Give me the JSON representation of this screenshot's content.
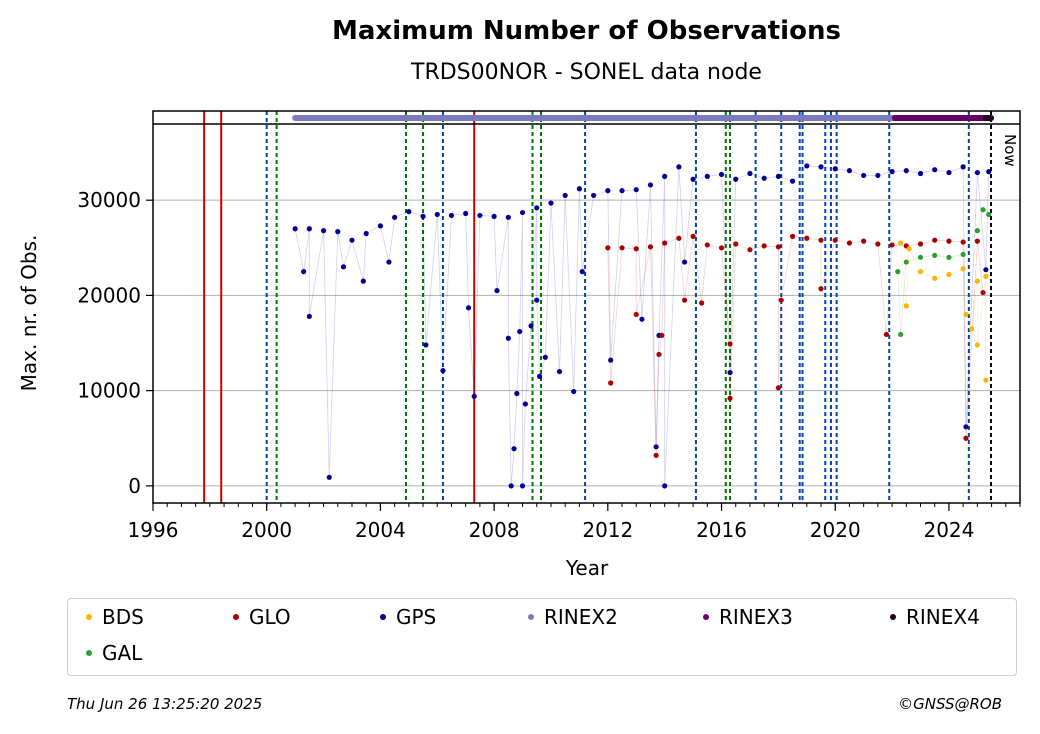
{
  "chart_data": {
    "type": "scatter",
    "title": "Maximum Number of Observations",
    "subtitle": "TRDS00NOR - SONEL data node",
    "xlabel": "Year",
    "ylabel": "Max. nr. of Obs.",
    "xlim": [
      1996,
      2026.5
    ],
    "ylim": [
      -1800,
      38000
    ],
    "xticks": [
      1996,
      2000,
      2004,
      2008,
      2012,
      2016,
      2020,
      2024
    ],
    "yticks": [
      0,
      10000,
      20000,
      30000
    ],
    "grid": "y",
    "now_label": "Now",
    "now_year": 2025.48,
    "series": [
      {
        "name": "GPS",
        "color": "#000099",
        "points": [
          [
            2001.0,
            27000
          ],
          [
            2001.5,
            27000
          ],
          [
            2002.0,
            26800
          ],
          [
            2002.5,
            26700
          ],
          [
            2003.0,
            25800
          ],
          [
            2003.5,
            26500
          ],
          [
            2004.0,
            27300
          ],
          [
            2004.5,
            28200
          ],
          [
            2005.0,
            28800
          ],
          [
            2005.5,
            28300
          ],
          [
            2006.0,
            28500
          ],
          [
            2006.5,
            28400
          ],
          [
            2007.0,
            28600
          ],
          [
            2007.5,
            28400
          ],
          [
            2008.0,
            28300
          ],
          [
            2008.5,
            28200
          ],
          [
            2009.0,
            28700
          ],
          [
            2009.5,
            29200
          ],
          [
            2010.0,
            29700
          ],
          [
            2010.5,
            30500
          ],
          [
            2011.0,
            31200
          ],
          [
            2011.5,
            30500
          ],
          [
            2012.0,
            31000
          ],
          [
            2012.5,
            31000
          ],
          [
            2013.0,
            31100
          ],
          [
            2013.5,
            31600
          ],
          [
            2014.0,
            32500
          ],
          [
            2014.5,
            33500
          ],
          [
            2015.0,
            32200
          ],
          [
            2015.5,
            32500
          ],
          [
            2016.0,
            32700
          ],
          [
            2016.5,
            32200
          ],
          [
            2017.0,
            32800
          ],
          [
            2017.5,
            32300
          ],
          [
            2018.0,
            32500
          ],
          [
            2018.5,
            32000
          ],
          [
            2019.0,
            33600
          ],
          [
            2019.5,
            33500
          ],
          [
            2020.0,
            33300
          ],
          [
            2020.5,
            33100
          ],
          [
            2021.0,
            32600
          ],
          [
            2021.5,
            32600
          ],
          [
            2022.0,
            33000
          ],
          [
            2022.5,
            33100
          ],
          [
            2023.0,
            32800
          ],
          [
            2023.5,
            33200
          ],
          [
            2024.0,
            32900
          ],
          [
            2024.5,
            33500
          ],
          [
            2025.0,
            32900
          ],
          [
            2025.4,
            33000
          ],
          [
            2001.3,
            22500
          ],
          [
            2001.5,
            17800
          ],
          [
            2002.2,
            900
          ],
          [
            2002.7,
            23000
          ],
          [
            2003.4,
            21500
          ],
          [
            2004.3,
            23500
          ],
          [
            2005.6,
            14800
          ],
          [
            2006.2,
            12100
          ],
          [
            2007.1,
            18700
          ],
          [
            2007.3,
            9400
          ],
          [
            2008.1,
            20500
          ],
          [
            2008.5,
            15500
          ],
          [
            2008.6,
            0
          ],
          [
            2008.7,
            3900
          ],
          [
            2008.8,
            9700
          ],
          [
            2008.9,
            16200
          ],
          [
            2009.0,
            0
          ],
          [
            2009.1,
            8600
          ],
          [
            2009.3,
            16800
          ],
          [
            2009.5,
            19500
          ],
          [
            2009.6,
            11500
          ],
          [
            2009.8,
            13500
          ],
          [
            2010.3,
            12000
          ],
          [
            2010.8,
            9900
          ],
          [
            2011.1,
            22500
          ],
          [
            2012.1,
            13200
          ],
          [
            2013.2,
            17500
          ],
          [
            2013.7,
            4100
          ],
          [
            2013.8,
            15800
          ],
          [
            2014.0,
            0
          ],
          [
            2014.7,
            23500
          ],
          [
            2016.3,
            11900
          ],
          [
            2024.6,
            6200
          ],
          [
            2025.3,
            22700
          ]
        ]
      },
      {
        "name": "GLO",
        "color": "#aa0000",
        "points": [
          [
            2012.0,
            25000
          ],
          [
            2012.5,
            25000
          ],
          [
            2013.0,
            24900
          ],
          [
            2013.5,
            25100
          ],
          [
            2014.0,
            25500
          ],
          [
            2014.5,
            26000
          ],
          [
            2015.0,
            26200
          ],
          [
            2015.5,
            25300
          ],
          [
            2016.0,
            25000
          ],
          [
            2016.5,
            25400
          ],
          [
            2017.0,
            24800
          ],
          [
            2017.5,
            25200
          ],
          [
            2018.0,
            25100
          ],
          [
            2018.5,
            26200
          ],
          [
            2019.0,
            26000
          ],
          [
            2019.5,
            25800
          ],
          [
            2020.0,
            25800
          ],
          [
            2020.5,
            25500
          ],
          [
            2021.0,
            25700
          ],
          [
            2021.5,
            25400
          ],
          [
            2022.0,
            25300
          ],
          [
            2022.5,
            25200
          ],
          [
            2023.0,
            25400
          ],
          [
            2023.5,
            25800
          ],
          [
            2024.0,
            25700
          ],
          [
            2024.5,
            25600
          ],
          [
            2025.0,
            25700
          ],
          [
            2012.1,
            10800
          ],
          [
            2013.0,
            18000
          ],
          [
            2013.7,
            3200
          ],
          [
            2013.8,
            13800
          ],
          [
            2013.9,
            15800
          ],
          [
            2014.7,
            19500
          ],
          [
            2015.3,
            19200
          ],
          [
            2016.3,
            14900
          ],
          [
            2016.3,
            9200
          ],
          [
            2018.0,
            10300
          ],
          [
            2018.1,
            19500
          ],
          [
            2019.5,
            20700
          ],
          [
            2021.8,
            15900
          ],
          [
            2024.6,
            5000
          ],
          [
            2025.2,
            20300
          ]
        ]
      },
      {
        "name": "GAL",
        "color": "#2ca02c",
        "points": [
          [
            2022.2,
            22500
          ],
          [
            2022.5,
            23500
          ],
          [
            2023.0,
            24000
          ],
          [
            2023.5,
            24200
          ],
          [
            2024.0,
            24000
          ],
          [
            2024.5,
            24300
          ],
          [
            2025.0,
            26800
          ],
          [
            2025.2,
            29000
          ],
          [
            2025.4,
            28500
          ],
          [
            2022.3,
            15900
          ]
        ]
      },
      {
        "name": "BDS",
        "color": "#ffb300",
        "points": [
          [
            2022.3,
            25500
          ],
          [
            2022.6,
            24900
          ],
          [
            2023.0,
            22500
          ],
          [
            2023.5,
            21800
          ],
          [
            2024.0,
            22200
          ],
          [
            2024.5,
            22800
          ],
          [
            2025.0,
            21500
          ],
          [
            2025.3,
            22000
          ],
          [
            2022.5,
            18900
          ],
          [
            2024.6,
            18000
          ],
          [
            2024.8,
            16500
          ],
          [
            2025.0,
            14800
          ],
          [
            2025.3,
            11100
          ]
        ]
      }
    ],
    "rinex_bars": [
      {
        "name": "RINEX2",
        "color": "#7b7bc0",
        "from": 2001.0,
        "to": 2022.1
      },
      {
        "name": "RINEX3",
        "color": "#660066",
        "from": 2022.1,
        "to": 2025.48
      },
      {
        "name": "RINEX4",
        "color": "#220022",
        "from": 2025.3,
        "to": 2025.48
      }
    ],
    "events": [
      {
        "year": 1997.8,
        "color": "#cc0000",
        "style": "solid"
      },
      {
        "year": 1998.4,
        "color": "#cc0000",
        "style": "solid"
      },
      {
        "year": 2000.0,
        "color": "#0044aa",
        "style": "dashed"
      },
      {
        "year": 2000.35,
        "color": "#007700",
        "style": "dashed"
      },
      {
        "year": 2004.9,
        "color": "#007700",
        "style": "dashed"
      },
      {
        "year": 2005.5,
        "color": "#007700",
        "style": "dashed"
      },
      {
        "year": 2006.2,
        "color": "#0044aa",
        "style": "dashed"
      },
      {
        "year": 2007.3,
        "color": "#cc0000",
        "style": "solid"
      },
      {
        "year": 2009.35,
        "color": "#007700",
        "style": "dashed"
      },
      {
        "year": 2009.65,
        "color": "#007700",
        "style": "dashed"
      },
      {
        "year": 2011.2,
        "color": "#0044aa",
        "style": "dashed"
      },
      {
        "year": 2015.1,
        "color": "#0044aa",
        "style": "dashed"
      },
      {
        "year": 2016.15,
        "color": "#007700",
        "style": "dashed"
      },
      {
        "year": 2016.3,
        "color": "#007700",
        "style": "dashed"
      },
      {
        "year": 2017.2,
        "color": "#0044aa",
        "style": "dashed"
      },
      {
        "year": 2018.1,
        "color": "#0044aa",
        "style": "dashed"
      },
      {
        "year": 2018.75,
        "color": "#0044aa",
        "style": "dashed"
      },
      {
        "year": 2018.85,
        "color": "#0044aa",
        "style": "dashed"
      },
      {
        "year": 2019.65,
        "color": "#0044aa",
        "style": "dashed"
      },
      {
        "year": 2019.85,
        "color": "#0044aa",
        "style": "dashed"
      },
      {
        "year": 2020.05,
        "color": "#0044aa",
        "style": "dashed"
      },
      {
        "year": 2021.9,
        "color": "#0044aa",
        "style": "dashed"
      },
      {
        "year": 2024.7,
        "color": "#0044aa",
        "style": "dashed"
      },
      {
        "year": 2025.48,
        "color": "#000000",
        "style": "dashed"
      }
    ],
    "legend": [
      {
        "label": "BDS",
        "color": "#ffb300"
      },
      {
        "label": "GLO",
        "color": "#aa0000"
      },
      {
        "label": "GPS",
        "color": "#000099"
      },
      {
        "label": "RINEX2",
        "color": "#7b7bc0"
      },
      {
        "label": "RINEX3",
        "color": "#660066"
      },
      {
        "label": "RINEX4",
        "color": "#220022"
      },
      {
        "label": "GAL",
        "color": "#2ca02c"
      }
    ],
    "legend_placement": "bottom"
  },
  "footer": {
    "timestamp": "Thu Jun 26 13:25:20 2025",
    "credit": "©GNSS@ROB"
  }
}
